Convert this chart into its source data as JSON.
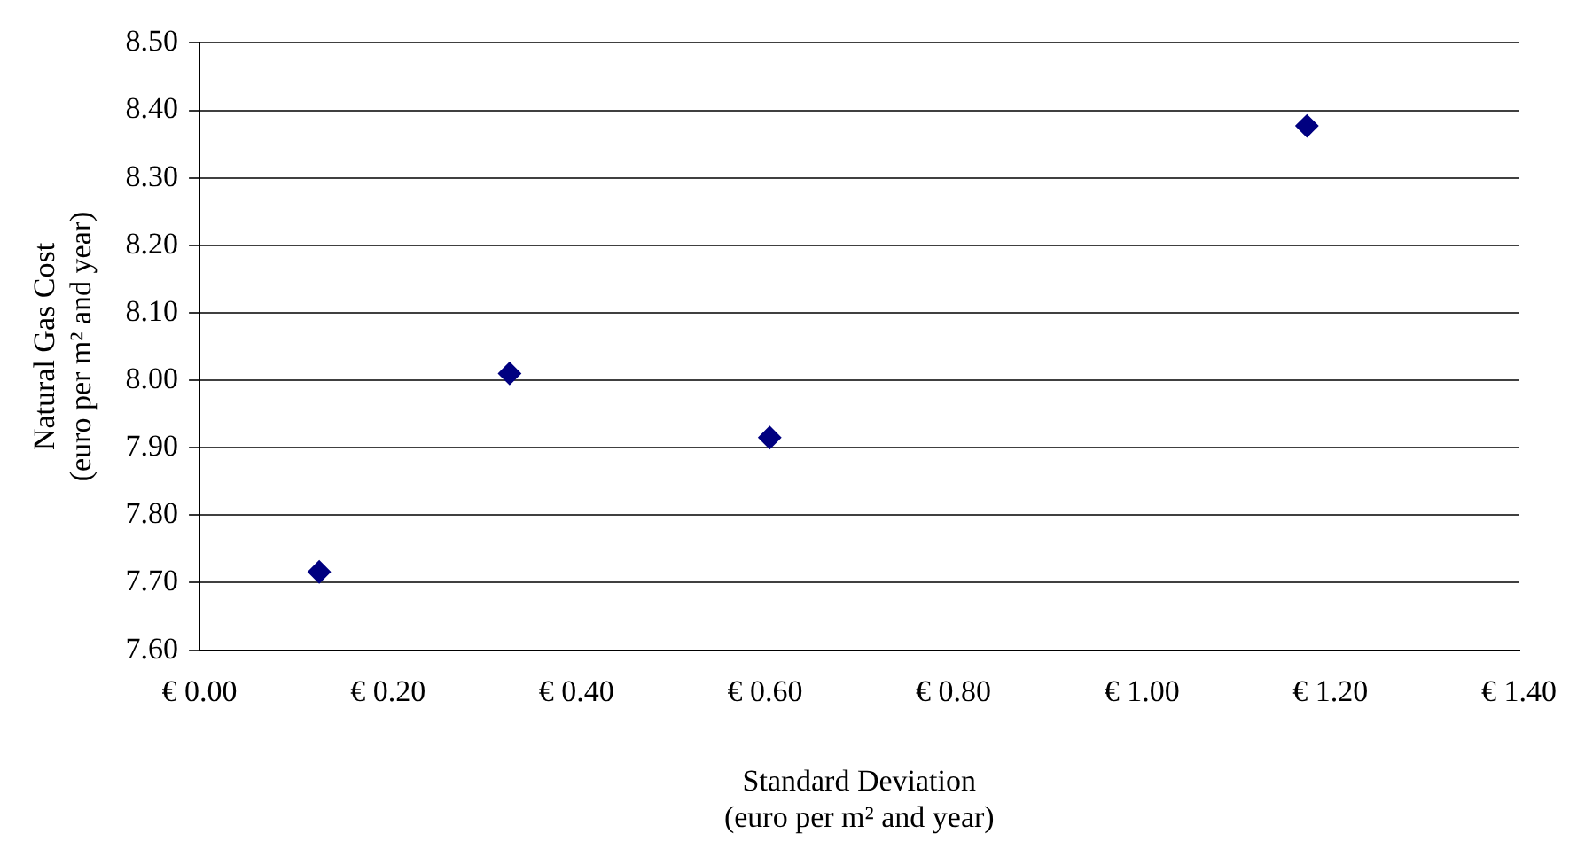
{
  "chart_data": {
    "type": "scatter",
    "xlabel": "Standard Deviation\n(euro per m² and year)",
    "ylabel": "Natural Gas Cost\n(euro per m² and year)",
    "x": [
      0.127,
      0.329,
      0.605,
      1.175
    ],
    "series": [
      {
        "color": "#000080",
        "values": [
          7.716,
          8.01,
          7.915,
          8.377
        ]
      }
    ],
    "xlim": [
      0,
      1.4
    ],
    "xticks": [
      {
        "value": 0,
        "label": "€ 0.00"
      },
      {
        "value": 0.2,
        "label": "€ 0.20"
      },
      {
        "value": 0.4,
        "label": "€ 0.40"
      },
      {
        "value": 0.6,
        "label": "€ 0.60"
      },
      {
        "value": 0.8,
        "label": "€ 0.80"
      },
      {
        "value": 1,
        "label": "€ 1.00"
      },
      {
        "value": 1.2,
        "label": "€ 1.20"
      },
      {
        "value": 1.4,
        "label": "€ 1.40"
      }
    ],
    "ylim": [
      7.6,
      8.5
    ],
    "yticks": [
      {
        "value": 7.6,
        "label": "7.60"
      },
      {
        "value": 7.7,
        "label": "7.70"
      },
      {
        "value": 7.8,
        "label": "7.80"
      },
      {
        "value": 7.9,
        "label": "7.90"
      },
      {
        "value": 8,
        "label": "8.00"
      },
      {
        "value": 8.1,
        "label": "8.10"
      },
      {
        "value": 8.2,
        "label": "8.20"
      },
      {
        "value": 8.3,
        "label": "8.30"
      },
      {
        "value": 8.4,
        "label": "8.40"
      },
      {
        "value": 8.5,
        "label": "8.50"
      }
    ],
    "grid": "y",
    "legend": false,
    "marker": "diamond"
  }
}
